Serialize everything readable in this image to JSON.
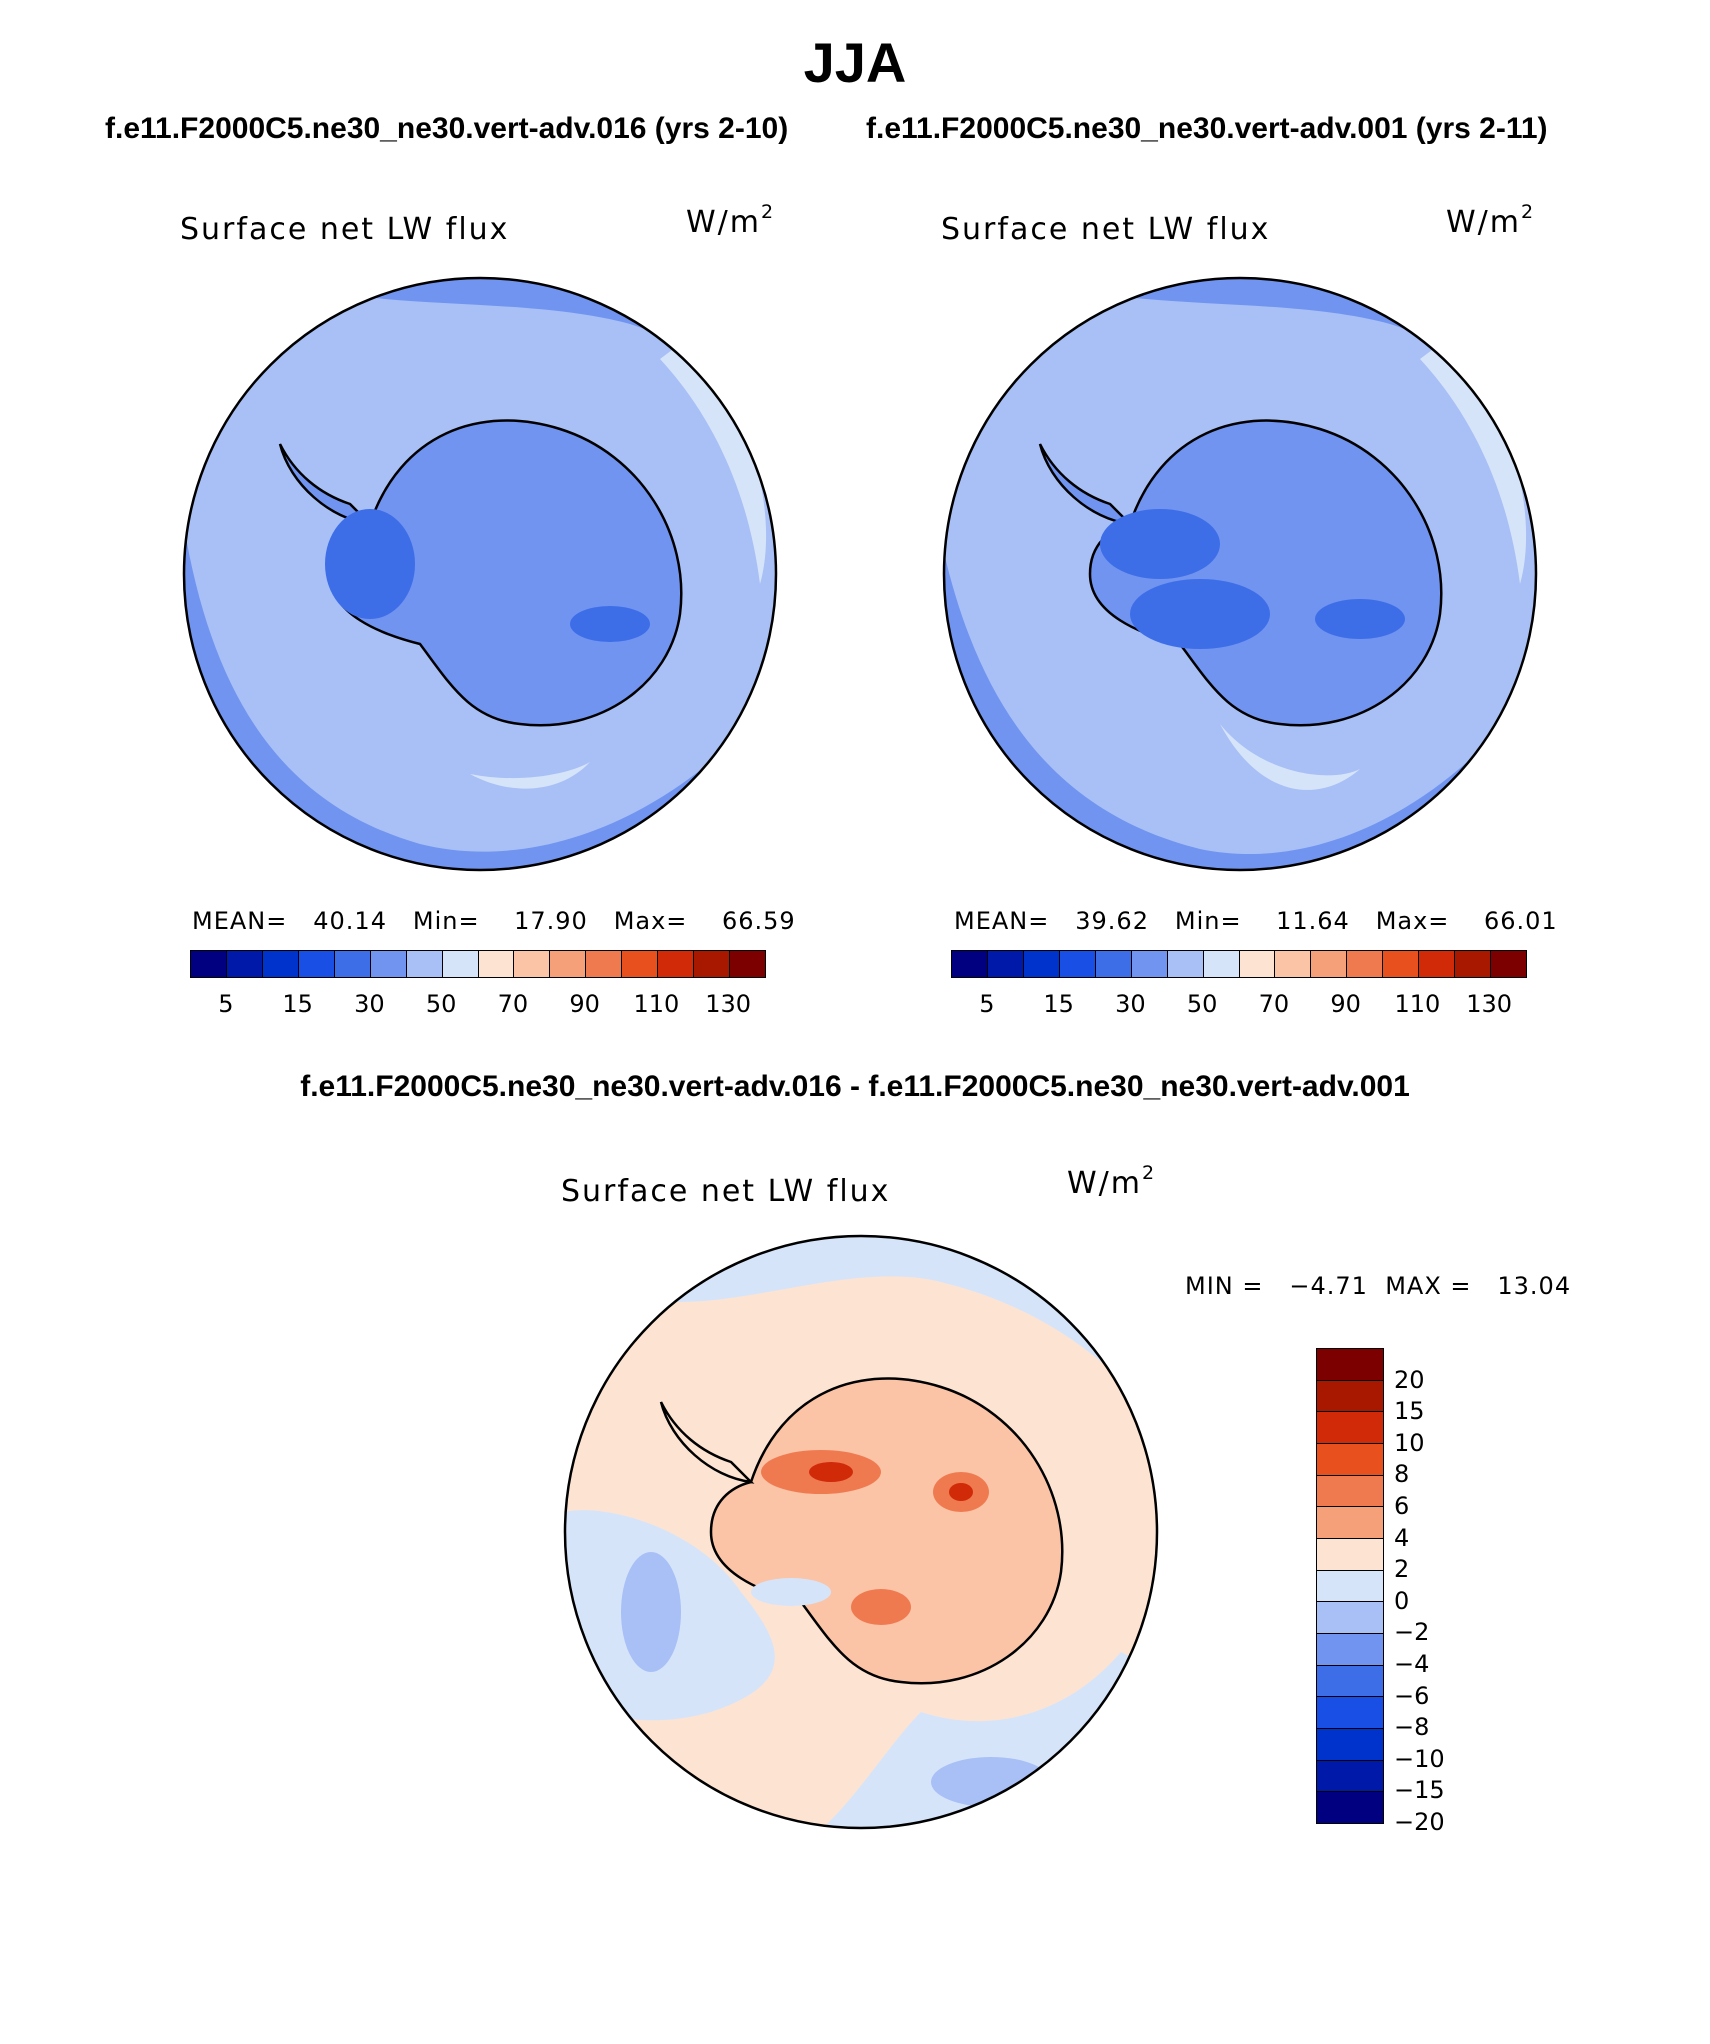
{
  "figure": {
    "season": "JJA",
    "case1_title": "f.e11.F2000C5.ne30_ne30.vert-adv.016 (yrs 2-10)",
    "case2_title": "f.e11.F2000C5.ne30_ne30.vert-adv.001 (yrs 2-11)",
    "diff_title": "f.e11.F2000C5.ne30_ne30.vert-adv.016 - f.e11.F2000C5.ne30_ne30.vert-adv.001"
  },
  "panels": {
    "left": {
      "variable": "Surface net LW flux",
      "units": "W/m",
      "units_exp": "2",
      "mean_label": "MEAN=",
      "mean": "40.14",
      "min_label": "Min=",
      "min": "17.90",
      "max_label": "Max=",
      "max": "66.59"
    },
    "right": {
      "variable": "Surface net LW flux",
      "units": "W/m",
      "units_exp": "2",
      "mean_label": "MEAN=",
      "mean": "39.62",
      "min_label": "Min=",
      "min": "11.64",
      "max_label": "Max=",
      "max": "66.01"
    },
    "diff": {
      "variable": "Surface net LW flux",
      "units": "W/m",
      "units_exp": "2",
      "min_label": "MIN =",
      "min": "−4.71",
      "max_label": "MAX =",
      "max": "13.04"
    }
  },
  "colorbar_abs": {
    "colors": [
      "#000080",
      "#0019a8",
      "#0033cc",
      "#1a4fe6",
      "#3d6ee8",
      "#7094f0",
      "#a8c0f5",
      "#d6e4fa",
      "#fde4d2",
      "#fbc4a6",
      "#f6a07a",
      "#f07a50",
      "#e8501e",
      "#d02a08",
      "#a81800",
      "#7c0000"
    ],
    "tick_labels": [
      "5",
      "15",
      "30",
      "50",
      "70",
      "90",
      "110",
      "130"
    ]
  },
  "colorbar_diff": {
    "colors": [
      "#7c0000",
      "#a81800",
      "#d02a08",
      "#e8501e",
      "#f07a50",
      "#f6a07a",
      "#fde4d2",
      "#d6e4fa",
      "#a8c0f5",
      "#7094f0",
      "#3d6ee8",
      "#1a4fe6",
      "#0033cc",
      "#0019a8",
      "#000080"
    ],
    "tick_labels": [
      "20",
      "15",
      "10",
      "8",
      "6",
      "4",
      "2",
      "0",
      "−2",
      "−4",
      "−6",
      "−8",
      "−10",
      "−15",
      "−20"
    ]
  },
  "map_colors": {
    "ocean_light": "#a8c0f5",
    "mid": "#7094f0",
    "dark": "#3d6ee8",
    "very_light": "#d6e4fa",
    "warm_light": "#fde4d2",
    "warm_mid": "#fbc4a6",
    "warm_strong": "#f07a50",
    "warm_dark": "#d02a08"
  }
}
